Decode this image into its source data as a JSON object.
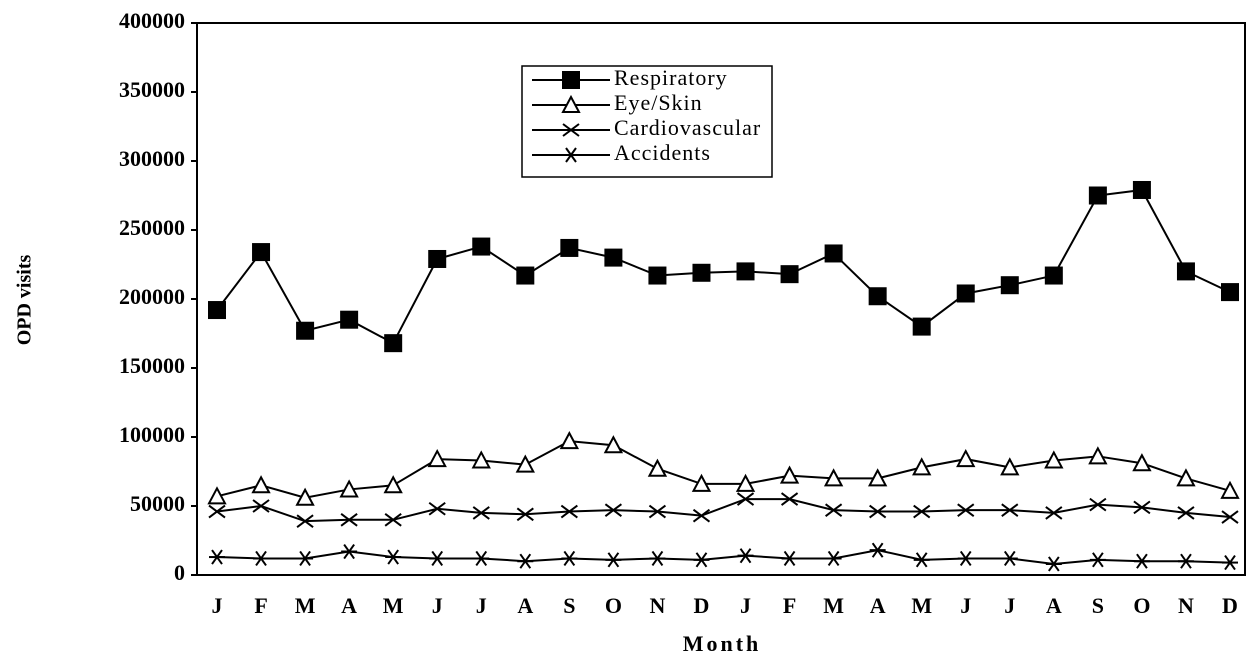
{
  "chart_data": {
    "type": "line",
    "x_label": "Month",
    "y_label": "OPD visits",
    "categories": [
      "J",
      "F",
      "M",
      "A",
      "M",
      "J",
      "J",
      "A",
      "S",
      "O",
      "N",
      "D",
      "J",
      "F",
      "M",
      "A",
      "M",
      "J",
      "J",
      "A",
      "S",
      "O",
      "N",
      "D"
    ],
    "ylim": [
      0,
      400000
    ],
    "yticks": [
      0,
      50000,
      100000,
      150000,
      200000,
      250000,
      300000,
      350000,
      400000
    ],
    "series": [
      {
        "name": "Respiratory",
        "color": "#000000",
        "marker": "square",
        "values": [
          192000,
          234000,
          177000,
          185000,
          168000,
          229000,
          238000,
          217000,
          237000,
          230000,
          217000,
          219000,
          220000,
          218000,
          233000,
          202000,
          180000,
          204000,
          210000,
          217000,
          275000,
          279000,
          220000,
          205000
        ]
      },
      {
        "name": "Eye/Skin",
        "color": "#000000",
        "marker": "triangle",
        "values": [
          57000,
          65000,
          56000,
          62000,
          65000,
          84000,
          83000,
          80000,
          97000,
          94000,
          77000,
          66000,
          66000,
          72000,
          70000,
          70000,
          78000,
          84000,
          78000,
          83000,
          86000,
          81000,
          70000,
          61000
        ]
      },
      {
        "name": "Cardiovascular",
        "color": "#000000",
        "marker": "x",
        "values": [
          46000,
          50000,
          39000,
          40000,
          40000,
          48000,
          45000,
          44000,
          46000,
          47000,
          46000,
          43000,
          55000,
          55000,
          47000,
          46000,
          46000,
          47000,
          47000,
          45000,
          51000,
          49000,
          45000,
          42000
        ]
      },
      {
        "name": "Accidents",
        "color": "#000000",
        "marker": "asterisk",
        "values": [
          13000,
          12000,
          12000,
          17000,
          13000,
          12000,
          12000,
          10000,
          12000,
          11000,
          12000,
          11000,
          14000,
          12000,
          12000,
          18000,
          11000,
          12000,
          12000,
          8000,
          11000,
          10000,
          10000,
          9000
        ]
      }
    ]
  }
}
